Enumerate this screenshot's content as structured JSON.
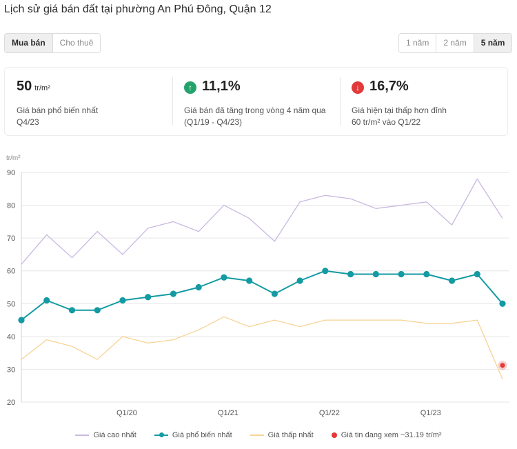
{
  "title": "Lịch sử giá bán đất tại phường An Phú Đông, Quận 12",
  "tabs": {
    "buy": "Mua bán",
    "rent": "Cho thuê"
  },
  "ranges": {
    "y1": "1 năm",
    "y2": "2 năm",
    "y5": "5 năm"
  },
  "stats": {
    "common": {
      "value": "50",
      "unit": "tr/m²",
      "line1": "Giá bán phổ biến nhất",
      "line2": "Q4/23"
    },
    "increase": {
      "value": "11,1%",
      "arrow": "↑",
      "line1": "Giá bán đã tăng trong vòng 4 năm qua",
      "line2": "(Q1/19 - Q4/23)"
    },
    "decrease": {
      "value": "16,7%",
      "arrow": "↓",
      "line1": "Giá hiện tại thấp hơn đỉnh",
      "line2": "60 tr/m² vào Q1/22"
    }
  },
  "colors": {
    "high": "#c9b8e0",
    "common": "#149aa2",
    "low": "#f7d394",
    "current": "#e53935",
    "grid": "#e6e6e6"
  },
  "chart_data": {
    "type": "line",
    "ylabel": "tr/m²",
    "ylim": [
      20,
      90
    ],
    "yticks": [
      20,
      30,
      40,
      50,
      60,
      70,
      80,
      90
    ],
    "x": [
      "Q1/19",
      "Q2/19",
      "Q3/19",
      "Q4/19",
      "Q1/20",
      "Q2/20",
      "Q3/20",
      "Q4/20",
      "Q1/21",
      "Q2/21",
      "Q3/21",
      "Q4/21",
      "Q1/22",
      "Q2/22",
      "Q3/22",
      "Q4/22",
      "Q1/23",
      "Q2/23",
      "Q3/23",
      "Q4/23"
    ],
    "xtick_labels": [
      "Q1/20",
      "Q1/21",
      "Q1/22",
      "Q1/23"
    ],
    "series": [
      {
        "name": "Giá cao nhất",
        "values": [
          62,
          71,
          64,
          72,
          65,
          73,
          75,
          72,
          80,
          76,
          69,
          81,
          83,
          82,
          79,
          80,
          81,
          74,
          88,
          76
        ]
      },
      {
        "name": "Giá phổ biến nhất",
        "values": [
          45,
          51,
          48,
          48,
          51,
          52,
          53,
          55,
          58,
          57,
          53,
          57,
          60,
          59,
          59,
          59,
          59,
          57,
          59,
          50
        ]
      },
      {
        "name": "Giá thấp nhất",
        "values": [
          33,
          39,
          37,
          33,
          40,
          38,
          39,
          42,
          46,
          43,
          45,
          43,
          45,
          45,
          45,
          45,
          44,
          44,
          45,
          27
        ]
      }
    ],
    "current_point": {
      "name": "Giá tin đang xem ~31.19 tr/m²",
      "x": "Q4/23",
      "value": 31.19
    }
  }
}
